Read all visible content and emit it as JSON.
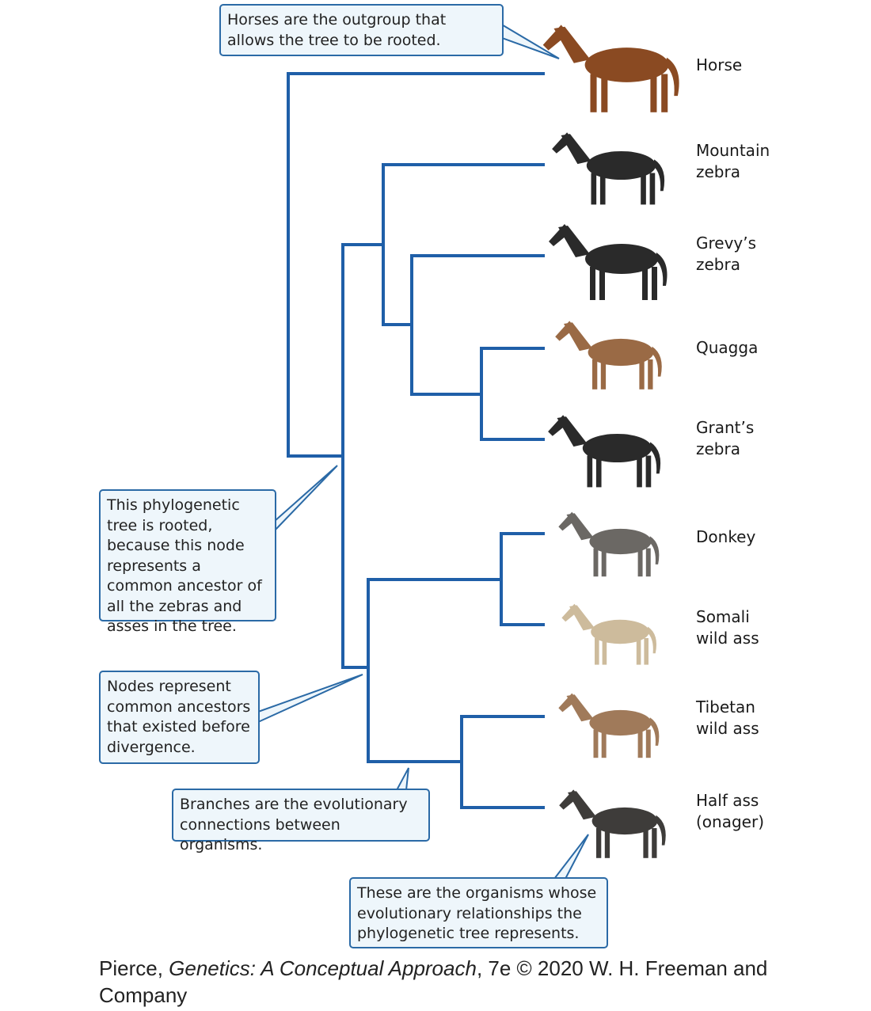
{
  "taxa": [
    {
      "id": "horse",
      "label": "Horse",
      "color": "#8a4a22"
    },
    {
      "id": "mountain-zebra",
      "label": "Mountain\nzebra",
      "color": "#2a2a2a"
    },
    {
      "id": "grevys-zebra",
      "label": "Grevy’s\nzebra",
      "color": "#2a2a2a"
    },
    {
      "id": "quagga",
      "label": "Quagga",
      "color": "#9a6a45"
    },
    {
      "id": "grants-zebra",
      "label": "Grant’s\nzebra",
      "color": "#2a2a2a"
    },
    {
      "id": "donkey",
      "label": "Donkey",
      "color": "#6b6864"
    },
    {
      "id": "somali-wild-ass",
      "label": "Somali\nwild ass",
      "color": "#cdbb9c"
    },
    {
      "id": "tibetan-wild-ass",
      "label": "Tibetan\nwild ass",
      "color": "#a07a5a"
    },
    {
      "id": "half-ass",
      "label": "Half ass\n(onager)",
      "color": "#3e3c3a"
    }
  ],
  "callouts": {
    "outgroup": "Horses are the outgroup that allows the tree to be rooted.",
    "rooted": "This phylogenetic tree is rooted, because this node represents a common ancestor of all the zebras and asses in the tree.",
    "nodes": "Nodes represent common ancestors that existed before divergence.",
    "branches": "Branches are the evolutionary connections between organisms.",
    "organisms": "These are the organisms whose evolutionary relationships the phylogenetic tree represents."
  },
  "citation": {
    "author": "Pierce, ",
    "book": "Genetics: A Conceptual Approach",
    "rest": ", 7e © 2020 W. H. Freeman and Company"
  },
  "colors": {
    "branch": "#1f5fa8",
    "callout_border": "#2b6aa6",
    "callout_fill": "#eef6fb"
  }
}
